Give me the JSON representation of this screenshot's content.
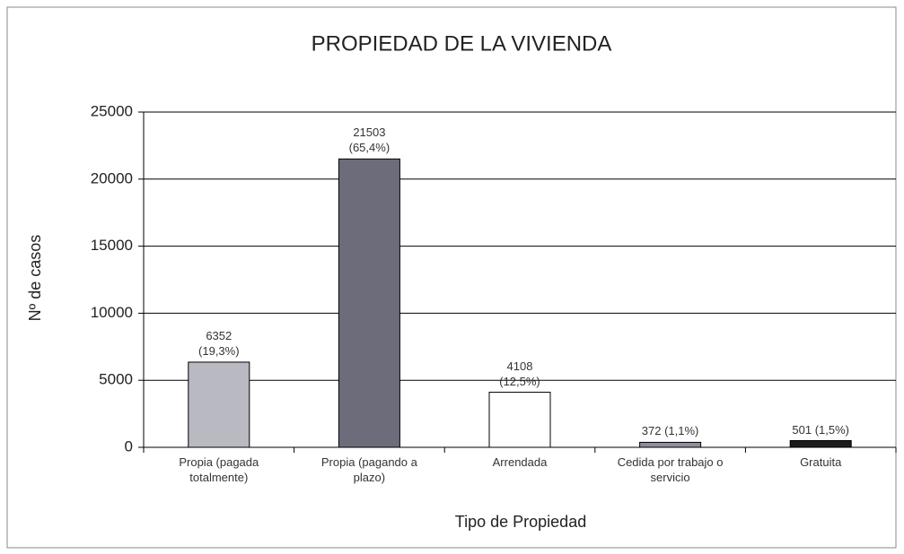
{
  "chart_data": {
    "type": "bar",
    "title": "PROPIEDAD DE LA VIVIENDA",
    "x_label": "Tipo de Propiedad",
    "y_label": "Nº de casos",
    "categories": [
      "Propia (pagada totalmente)",
      "Propia (pagando a plazo)",
      "Arrendada",
      "Cedida por trabajo o servicio",
      "Gratuita"
    ],
    "values": [
      6352,
      21503,
      4108,
      372,
      501
    ],
    "value_labels": [
      "6352 (19,3%)",
      "21503 (65,4%)",
      "4108 (12,5%)",
      "372 (1,1%)",
      "501 (1,5%)"
    ],
    "colors": [
      "#b9b9c1",
      "#6c6c7a",
      "#ffffff",
      "#8d8d9c",
      "#1c1c1c"
    ],
    "ylim": [
      0,
      25000
    ],
    "yticks": [
      0,
      5000,
      10000,
      15000,
      20000,
      25000
    ],
    "grid": true
  }
}
